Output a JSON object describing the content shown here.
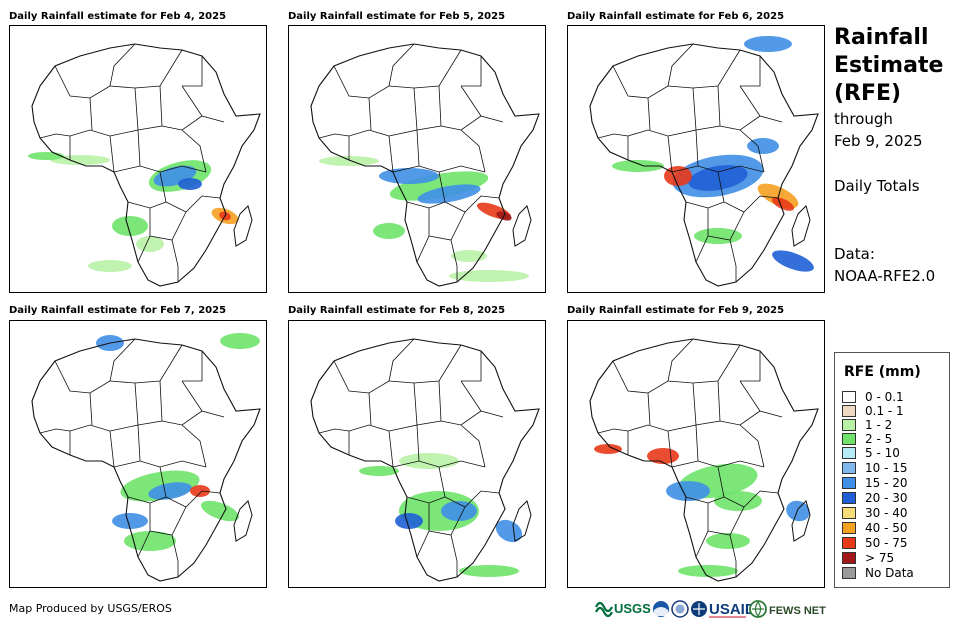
{
  "panels": [
    {
      "title": "Daily Rainfall estimate for Feb 4, 2025"
    },
    {
      "title": "Daily Rainfall estimate for Feb 5, 2025"
    },
    {
      "title": "Daily Rainfall estimate for Feb 6, 2025"
    },
    {
      "title": "Daily Rainfall estimate for Feb 7, 2025"
    },
    {
      "title": "Daily Rainfall estimate for Feb 8, 2025"
    },
    {
      "title": "Daily Rainfall estimate for Feb 9, 2025"
    }
  ],
  "sidebar": {
    "title_line1": "Rainfall",
    "title_line2": "Estimate",
    "title_line3": "(RFE)",
    "through_label": "through",
    "date": "Feb 9, 2025",
    "totals_label": "Daily Totals",
    "data_label": "Data:",
    "data_source": "NOAA-RFE2.0"
  },
  "legend": {
    "title": "RFE (mm)",
    "items": [
      {
        "label": "0 - 0.1",
        "color": "#ffffff"
      },
      {
        "label": "0.1 - 1",
        "color": "#ecd9bf"
      },
      {
        "label": "1 - 2",
        "color": "#b9f2a6"
      },
      {
        "label": "2 - 5",
        "color": "#6ee36a"
      },
      {
        "label": "5 - 10",
        "color": "#b5ecf5"
      },
      {
        "label": "10 - 15",
        "color": "#7fb8ee"
      },
      {
        "label": "15 - 20",
        "color": "#3f8fe6"
      },
      {
        "label": "20 - 30",
        "color": "#1f5fd6"
      },
      {
        "label": "30 - 40",
        "color": "#f7dc7a"
      },
      {
        "label": "40 - 50",
        "color": "#f5a020"
      },
      {
        "label": "50 - 75",
        "color": "#e8381a"
      },
      {
        "label": "> 75",
        "color": "#a01818"
      },
      {
        "label": "No Data",
        "color": "#9a9a9a"
      }
    ]
  },
  "footer": {
    "credit": "Map Produced by USGS/EROS"
  },
  "logos": {
    "usgs": "USGS",
    "usaid": "USAID",
    "fewsnet": "FEWS NET"
  }
}
